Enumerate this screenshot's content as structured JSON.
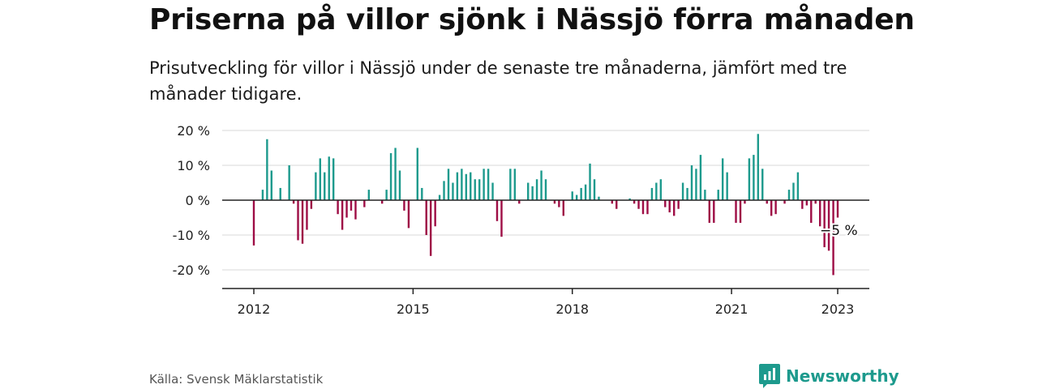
{
  "header": {
    "title": "Priserna på villor sjönk i Nässjö förra månaden",
    "subtitle": "Prisutveckling för villor i Nässjö under de senaste tre månaderna, jämfört med tre månader tidigare."
  },
  "footer": {
    "source": "Källa: Svensk Mäklarstatistik",
    "brand": "Newsworthy"
  },
  "colors": {
    "positive": "#1d9a8d",
    "negative": "#9e0d45",
    "grid": "#d9d9d9",
    "axis": "#222222"
  },
  "chart_data": {
    "type": "bar",
    "title": "",
    "xlabel": "",
    "ylabel": "",
    "ylim": [
      -25,
      20
    ],
    "y_ticks": [
      20,
      10,
      0,
      -10,
      -20
    ],
    "y_tick_labels": [
      "20 %",
      "10 %",
      "0 %",
      "-10 %",
      "-20 %"
    ],
    "x_ticks": [
      2012,
      2015,
      2018,
      2021,
      2023
    ],
    "x_tick_labels": [
      "2012",
      "2015",
      "2018",
      "2021",
      "2023"
    ],
    "annotation": "−5 %",
    "grid": true,
    "x": [
      2012.0,
      2012.083,
      2012.167,
      2012.25,
      2012.333,
      2012.417,
      2012.5,
      2012.583,
      2012.667,
      2012.75,
      2012.833,
      2012.917,
      2013.0,
      2013.083,
      2013.167,
      2013.25,
      2013.333,
      2013.417,
      2013.5,
      2013.583,
      2013.667,
      2013.75,
      2013.833,
      2013.917,
      2014.0,
      2014.083,
      2014.167,
      2014.25,
      2014.333,
      2014.417,
      2014.5,
      2014.583,
      2014.667,
      2014.75,
      2014.833,
      2014.917,
      2015.0,
      2015.083,
      2015.167,
      2015.25,
      2015.333,
      2015.417,
      2015.5,
      2015.583,
      2015.667,
      2015.75,
      2015.833,
      2015.917,
      2016.0,
      2016.083,
      2016.167,
      2016.25,
      2016.333,
      2016.417,
      2016.5,
      2016.583,
      2016.667,
      2016.75,
      2016.833,
      2016.917,
      2017.0,
      2017.083,
      2017.167,
      2017.25,
      2017.333,
      2017.417,
      2017.5,
      2017.583,
      2017.667,
      2017.75,
      2017.833,
      2017.917,
      2018.0,
      2018.083,
      2018.167,
      2018.25,
      2018.333,
      2018.417,
      2018.5,
      2018.583,
      2018.667,
      2018.75,
      2018.833,
      2018.917,
      2019.0,
      2019.083,
      2019.167,
      2019.25,
      2019.333,
      2019.417,
      2019.5,
      2019.583,
      2019.667,
      2019.75,
      2019.833,
      2019.917,
      2020.0,
      2020.083,
      2020.167,
      2020.25,
      2020.333,
      2020.417,
      2020.5,
      2020.583,
      2020.667,
      2020.75,
      2020.833,
      2020.917,
      2021.0,
      2021.083,
      2021.167,
      2021.25,
      2021.333,
      2021.417,
      2021.5,
      2021.583,
      2021.667,
      2021.75,
      2021.833,
      2021.917,
      2022.0,
      2022.083,
      2022.167,
      2022.25,
      2022.333,
      2022.417,
      2022.5,
      2022.583,
      2022.667,
      2022.75,
      2022.833,
      2022.917,
      2023.0
    ],
    "values": [
      -13,
      0,
      3,
      17.5,
      8.5,
      0,
      3.5,
      0,
      10,
      -1,
      -11.5,
      -12.5,
      -8.5,
      -2.5,
      8,
      12,
      8,
      12.5,
      12,
      -4,
      -8.5,
      -5,
      -3,
      -5.5,
      0,
      -2,
      3,
      0,
      0,
      -1,
      3,
      13.5,
      15,
      8.5,
      -3,
      -8,
      0,
      15,
      3.5,
      -10,
      -16,
      -7.5,
      1.5,
      5.5,
      9,
      5,
      8,
      9,
      7.5,
      8,
      6,
      6,
      9,
      9,
      5,
      -6,
      -10.5,
      0,
      9,
      9,
      -1,
      0,
      5,
      4,
      6,
      8.5,
      6,
      0,
      -1,
      -2,
      -4.5,
      0,
      2.5,
      1.5,
      3.5,
      4.5,
      10.5,
      6,
      1,
      0,
      0,
      -1,
      -2.5,
      0,
      0,
      0.5,
      -1,
      -2.5,
      -4,
      -4,
      3.5,
      5,
      6,
      -2,
      -3.5,
      -4.5,
      -2.5,
      5,
      3.5,
      10,
      9,
      13,
      3,
      -6.5,
      -6.5,
      3,
      12,
      8,
      0,
      -6.5,
      -6.5,
      -1,
      12,
      13,
      19,
      9,
      -1,
      -4.5,
      -4,
      0,
      -1,
      3,
      5,
      8,
      -2.5,
      -1.5,
      -6.5,
      -1,
      -7.5,
      -13.5,
      -14.5,
      -21.5,
      -5
    ]
  }
}
